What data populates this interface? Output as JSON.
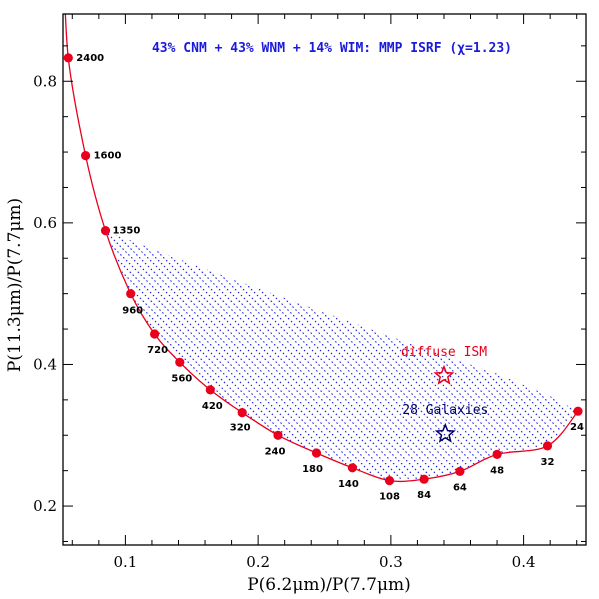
{
  "chart_data": {
    "type": "line",
    "xlabel": "P(6.2μm)/P(7.7μm)",
    "ylabel": "P(11.3μm)/P(7.7μm)",
    "xlim": [
      0.053,
      0.447
    ],
    "ylim": [
      0.145,
      0.895
    ],
    "x_ticks": [
      0.1,
      0.2,
      0.3,
      0.4
    ],
    "x_tick_labels": [
      "0.1",
      "0.2",
      "0.3",
      "0.4"
    ],
    "x_minor_step": 0.02,
    "y_ticks": [
      0.2,
      0.4,
      0.6,
      0.8
    ],
    "y_tick_labels": [
      "0.2",
      "0.4",
      "0.6",
      "0.8"
    ],
    "y_minor_step": 0.05,
    "annotation": "43% CNM + 43% WNM + 14% WIM: MMP ISRF (χ=1.23)",
    "colors": {
      "curve": "#e8001c",
      "hatch": "#1a1adb",
      "annotation": "#1a1adb",
      "diffuse_star": "#e8001c",
      "galaxies_star": "#000066"
    },
    "series": [
      {
        "x": [
          0.057,
          0.07,
          0.085,
          0.104,
          0.122,
          0.141,
          0.164,
          0.188,
          0.215,
          0.244,
          0.271,
          0.299,
          0.325,
          0.352,
          0.38,
          0.418,
          0.441
        ],
        "y": [
          0.833,
          0.695,
          0.589,
          0.5,
          0.443,
          0.403,
          0.364,
          0.332,
          0.3,
          0.275,
          0.254,
          0.236,
          0.238,
          0.249,
          0.273,
          0.285,
          0.334
        ],
        "point_labels": [
          "2400",
          "1600",
          "1350",
          "960",
          "720",
          "560",
          "420",
          "320",
          "240",
          "180",
          "140",
          "108",
          "84",
          "64",
          "48",
          "32",
          "24"
        ]
      }
    ],
    "hatched_region_upper_edge": {
      "x": [
        0.085,
        0.13,
        0.18,
        0.23,
        0.28,
        0.33,
        0.38,
        0.42,
        0.441
      ],
      "y": [
        0.589,
        0.556,
        0.521,
        0.487,
        0.453,
        0.419,
        0.387,
        0.355,
        0.334
      ]
    },
    "markers": [
      {
        "label": "diffuse ISM",
        "x": 0.34,
        "y": 0.384,
        "color": "#e8001c"
      },
      {
        "label": "28 Galaxies",
        "x": 0.341,
        "y": 0.302,
        "color": "#000066"
      }
    ]
  }
}
